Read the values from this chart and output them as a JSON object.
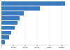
{
  "values": [
    53000,
    32000,
    18400,
    15000,
    13200,
    11000,
    8400,
    6300,
    3200
  ],
  "bar_color": "#3a7abf",
  "background_color": "#ffffff",
  "xlim": [
    0,
    56000
  ],
  "bar_height": 0.82,
  "figsize": [
    1.0,
    0.71
  ],
  "dpi": 100
}
